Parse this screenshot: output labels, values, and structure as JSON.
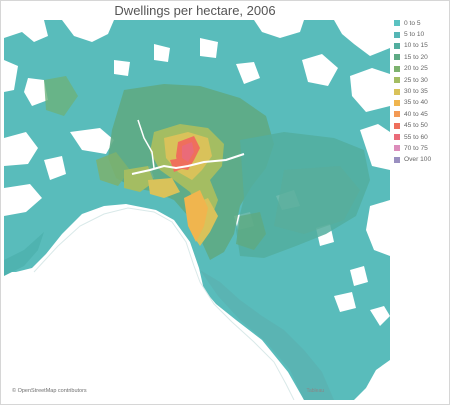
{
  "title": "Dwellings per hectare, 2006",
  "legend": {
    "items": [
      {
        "label": "0 to 5",
        "color": "#5bc2c1"
      },
      {
        "label": "5 to 10",
        "color": "#55b6b5"
      },
      {
        "label": "10 to 15",
        "color": "#52ae9f"
      },
      {
        "label": "15 to 20",
        "color": "#5eaa84"
      },
      {
        "label": "20 to 25",
        "color": "#7db26e"
      },
      {
        "label": "25 to 30",
        "color": "#a4bd62"
      },
      {
        "label": "30 to 35",
        "color": "#d9c25a"
      },
      {
        "label": "35 to 40",
        "color": "#f0b54e"
      },
      {
        "label": "40 to 45",
        "color": "#f39a55"
      },
      {
        "label": "45 to 50",
        "color": "#ef6f5c"
      },
      {
        "label": "55 to 60",
        "color": "#ea6b79"
      },
      {
        "label": "70 to 75",
        "color": "#dc8dbb"
      },
      {
        "label": "Over 100",
        "color": "#9a8fc0"
      }
    ]
  },
  "map": {
    "water_color": "#ffffff",
    "region_label": "Dwellings per hectare, 2006"
  },
  "attribution": {
    "text": "© OpenStreetMap contributors"
  },
  "logo": {
    "text": "Tableau"
  }
}
